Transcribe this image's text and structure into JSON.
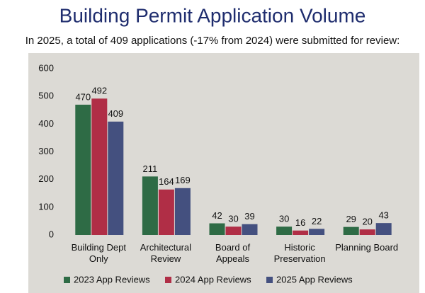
{
  "chart_data": {
    "type": "bar",
    "title": "Building Permit Application Volume",
    "subtitle": "In 2025, a total of 409 applications (-17% from 2024) were submitted for review:",
    "categories": [
      "Building Dept Only",
      "Architectural Review",
      "Board of Appeals",
      "Historic Preservation",
      "Planning Board"
    ],
    "series": [
      {
        "name": "2023 App Reviews",
        "color": "#2e6b45",
        "values": [
          470,
          211,
          42,
          30,
          29
        ]
      },
      {
        "name": "2024 App Reviews",
        "color": "#b02e46",
        "values": [
          492,
          164,
          30,
          16,
          20
        ]
      },
      {
        "name": "2025 App Reviews",
        "color": "#44507f",
        "values": [
          409,
          169,
          39,
          22,
          43
        ]
      }
    ],
    "ylim": [
      0,
      600
    ],
    "yticks": [
      0,
      100,
      200,
      300,
      400,
      500,
      600
    ],
    "grid": false,
    "legend": "bottom"
  }
}
